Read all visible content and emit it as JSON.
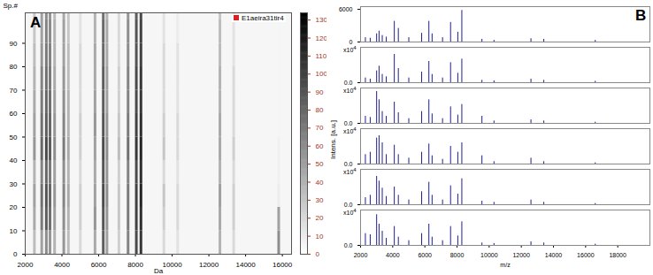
{
  "chart_data": [
    {
      "type": "heatmap",
      "panel_label": "A",
      "xlabel": "Da",
      "ylabel": "Sp.#",
      "xlim": [
        2000,
        16500
      ],
      "xticks": [
        2000,
        4000,
        6000,
        8000,
        10000,
        12000,
        14000,
        16000
      ],
      "ylim": [
        0,
        103
      ],
      "yticks": [
        0,
        10,
        20,
        30,
        40,
        50,
        60,
        70,
        80,
        90
      ],
      "annotations": [
        {
          "text": "E1aeira31tir4",
          "color": "#e02020"
        }
      ],
      "colorbar": {
        "range": [
          0,
          134
        ],
        "ticks": [
          0,
          10,
          20,
          30,
          40,
          50,
          60,
          70,
          80,
          90,
          100,
          110,
          120,
          130
        ]
      },
      "cells": {
        "x": [
          2500,
          2900,
          3150,
          3350,
          3600,
          4100,
          4350,
          5000,
          5800,
          6250,
          6450,
          7100,
          7600,
          8050,
          8300,
          9550,
          10300,
          12600,
          13350,
          15800
        ],
        "y_bins": [
          0,
          10,
          20,
          30,
          40,
          50,
          60,
          70,
          80,
          90,
          100,
          103
        ],
        "z": [
          [
            35,
            50,
            60,
            55,
            40,
            55,
            35,
            20,
            45,
            85,
            50,
            25,
            65,
            95,
            105,
            20,
            15,
            40,
            20,
            60
          ],
          [
            45,
            70,
            85,
            75,
            50,
            60,
            40,
            25,
            55,
            90,
            55,
            30,
            70,
            100,
            110,
            25,
            20,
            45,
            25,
            50
          ],
          [
            50,
            75,
            90,
            80,
            55,
            65,
            45,
            25,
            50,
            95,
            60,
            30,
            70,
            100,
            115,
            30,
            20,
            50,
            25,
            10
          ],
          [
            40,
            65,
            80,
            70,
            50,
            60,
            40,
            20,
            45,
            90,
            55,
            25,
            65,
            95,
            110,
            20,
            15,
            40,
            20,
            8
          ],
          [
            55,
            80,
            95,
            85,
            60,
            70,
            45,
            25,
            50,
            95,
            60,
            35,
            75,
            105,
            115,
            30,
            20,
            45,
            25,
            8
          ],
          [
            50,
            75,
            85,
            80,
            55,
            65,
            40,
            25,
            55,
            90,
            55,
            30,
            70,
            100,
            110,
            25,
            20,
            45,
            20,
            5
          ],
          [
            45,
            70,
            80,
            75,
            50,
            60,
            40,
            20,
            50,
            85,
            50,
            25,
            65,
            95,
            105,
            20,
            15,
            40,
            20,
            5
          ],
          [
            40,
            65,
            75,
            70,
            45,
            55,
            35,
            20,
            45,
            85,
            50,
            25,
            65,
            95,
            105,
            20,
            15,
            40,
            20,
            5
          ],
          [
            35,
            55,
            70,
            65,
            40,
            50,
            35,
            20,
            45,
            80,
            45,
            20,
            60,
            90,
            100,
            20,
            15,
            35,
            15,
            5
          ],
          [
            30,
            50,
            65,
            60,
            40,
            50,
            30,
            15,
            40,
            80,
            45,
            20,
            60,
            90,
            100,
            15,
            10,
            35,
            15,
            5
          ],
          [
            30,
            50,
            60,
            55,
            35,
            45,
            30,
            15,
            40,
            75,
            40,
            20,
            55,
            85,
            95,
            15,
            10,
            30,
            15,
            5
          ]
        ]
      }
    },
    {
      "type": "spectrum",
      "panel_label": "B",
      "xlabel": "m/z",
      "ylabel": "Intens. [a.u.]",
      "color": "#1f1f8f",
      "xlim": [
        2000,
        20000
      ],
      "xticks": [
        2000,
        4000,
        6000,
        8000,
        10000,
        12000,
        14000,
        16000,
        18000
      ],
      "x": [
        2300,
        2600,
        3000,
        3150,
        3350,
        3600,
        4100,
        4350,
        5000,
        5800,
        6250,
        6450,
        7100,
        7600,
        8050,
        8300,
        9550,
        10300,
        12600,
        13400,
        16600
      ],
      "panels": [
        {
          "ylim": [
            0,
            6500
          ],
          "yticks": [
            0,
            6000
          ],
          "values": [
            800,
            700,
            1500,
            2000,
            1200,
            900,
            3800,
            2500,
            800,
            1600,
            3800,
            1500,
            800,
            3600,
            1800,
            5800,
            500,
            300,
            600,
            500,
            300
          ]
        },
        {
          "ylim": [
            0,
            1.5
          ],
          "yticks": [
            {
              "value": 0,
              "label": "0.0"
            }
          ],
          "y_multiplier": {
            "text": "x10",
            "exponent": 4
          },
          "values": [
            0.2,
            0.15,
            0.5,
            0.7,
            0.35,
            0.25,
            1.2,
            0.6,
            0.2,
            0.45,
            0.9,
            0.35,
            0.2,
            0.85,
            0.4,
            1.0,
            0.1,
            0.08,
            0.15,
            0.1,
            0.06
          ]
        },
        {
          "ylim": [
            0,
            1.5
          ],
          "yticks": [
            {
              "value": 0,
              "label": "0.0"
            }
          ],
          "y_multiplier": {
            "text": "x10",
            "exponent": 4
          },
          "values": [
            0.3,
            0.25,
            1.35,
            1.0,
            0.5,
            0.3,
            0.9,
            0.45,
            0.2,
            0.5,
            1.0,
            0.4,
            0.2,
            0.7,
            0.35,
            0.8,
            0.3,
            0.1,
            0.15,
            0.1,
            0.05
          ]
        },
        {
          "ylim": [
            0,
            1.5
          ],
          "yticks": [
            {
              "value": 0,
              "label": "0.0"
            }
          ],
          "y_multiplier": {
            "text": "x10",
            "exponent": 4
          },
          "values": [
            0.4,
            0.5,
            1.1,
            1.2,
            0.9,
            0.4,
            0.8,
            0.4,
            0.25,
            0.5,
            0.85,
            0.35,
            0.2,
            0.75,
            0.5,
            0.9,
            0.35,
            0.1,
            0.25,
            0.1,
            0.05
          ]
        },
        {
          "ylim": [
            0,
            1.5
          ],
          "yticks": [
            {
              "value": 0,
              "label": "0.0"
            }
          ],
          "y_multiplier": {
            "text": "x10",
            "exponent": 4
          },
          "values": [
            0.3,
            0.4,
            1.2,
            1.0,
            0.7,
            0.35,
            0.75,
            0.4,
            0.2,
            0.55,
            0.95,
            0.4,
            0.2,
            0.8,
            0.45,
            1.1,
            0.15,
            0.1,
            0.2,
            0.1,
            0.05
          ]
        },
        {
          "ylim": [
            0,
            1.5
          ],
          "yticks": [
            {
              "value": 0,
              "label": "0.0"
            }
          ],
          "y_multiplier": {
            "text": "x10",
            "exponent": 4
          },
          "values": [
            0.5,
            0.45,
            1.3,
            0.9,
            0.6,
            0.3,
            0.8,
            0.35,
            0.2,
            0.5,
            0.9,
            0.35,
            0.2,
            0.8,
            0.4,
            1.0,
            0.1,
            0.08,
            0.15,
            0.1,
            0.05
          ]
        }
      ]
    }
  ]
}
